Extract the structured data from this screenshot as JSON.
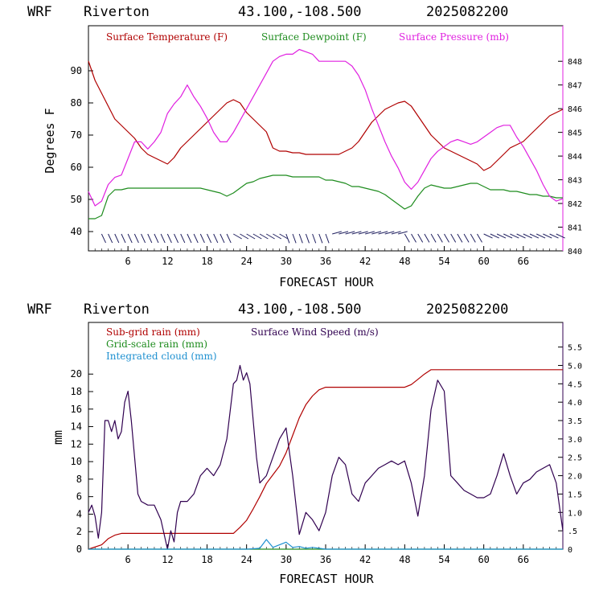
{
  "panels": [
    {
      "header": {
        "model": "WRF",
        "station": "Riverton",
        "coords": "43.100,-108.500",
        "run": "2025082200"
      },
      "xlabel": "FORECAST HOUR",
      "ylabel": "Degrees F",
      "legend": [
        {
          "label": "Surface Temperature (F)",
          "color": "#b00000"
        },
        {
          "label": "Surface Dewpoint (F)",
          "color": "#1e8c1e"
        },
        {
          "label": "Surface Pressure (mb)",
          "color": "#e020e0"
        }
      ]
    },
    {
      "header": {
        "model": "WRF",
        "station": "Riverton",
        "coords": "43.100,-108.500",
        "run": "2025082200"
      },
      "xlabel": "FORECAST HOUR",
      "ylabel": "mm",
      "legend": [
        {
          "label": "Sub-grid rain (mm)",
          "color": "#b00000"
        },
        {
          "label": "Surface Wind Speed (m/s)",
          "color": "#300050"
        },
        {
          "label": "Grid-scale rain (mm)",
          "color": "#1e8c1e"
        },
        {
          "label": "Integrated cloud (mm)",
          "color": "#1e90d0"
        }
      ]
    }
  ],
  "chart_data": [
    {
      "type": "line",
      "title": "WRF Riverton 43.100,-108.500 2025082200",
      "xlabel": "FORECAST HOUR",
      "ylabel": "Degrees F",
      "y2label": "",
      "xlim": [
        0,
        72
      ],
      "ylim": [
        34,
        104
      ],
      "y2lim": [
        840,
        849.5
      ],
      "x_ticks": [
        6,
        12,
        18,
        24,
        30,
        36,
        42,
        48,
        54,
        60,
        66
      ],
      "y_ticks": [
        40,
        50,
        60,
        70,
        80,
        90
      ],
      "y2_ticks": [
        840,
        841,
        842,
        843,
        844,
        845,
        846,
        847,
        848
      ],
      "series": [
        {
          "name": "Surface Temperature (F)",
          "color": "#b00000",
          "axis": "left",
          "x": [
            0,
            1,
            2,
            3,
            4,
            5,
            6,
            7,
            8,
            9,
            10,
            11,
            12,
            13,
            14,
            15,
            16,
            17,
            18,
            19,
            20,
            21,
            22,
            23,
            24,
            25,
            26,
            27,
            28,
            29,
            30,
            31,
            32,
            33,
            34,
            35,
            36,
            37,
            38,
            39,
            40,
            41,
            42,
            43,
            44,
            45,
            46,
            47,
            48,
            49,
            50,
            51,
            52,
            53,
            54,
            55,
            56,
            57,
            58,
            59,
            60,
            61,
            62,
            63,
            64,
            65,
            66,
            67,
            68,
            69,
            70,
            71,
            72
          ],
          "y": [
            93,
            87,
            83,
            79,
            75,
            73,
            71,
            69,
            66,
            64,
            63,
            62,
            61,
            63,
            66,
            68,
            70,
            72,
            74,
            76,
            78,
            80,
            81,
            80,
            77,
            75,
            73,
            71,
            66,
            65,
            65,
            64.5,
            64.5,
            64,
            64,
            64,
            64,
            64,
            64,
            65,
            66,
            68,
            71,
            74,
            76,
            78,
            79,
            80,
            80.5,
            79,
            76,
            73,
            70,
            68,
            66,
            65,
            64,
            63,
            62,
            61,
            59,
            60,
            62,
            64,
            66,
            67,
            68,
            70,
            72,
            74,
            76,
            77,
            78
          ]
        },
        {
          "name": "Surface Dewpoint (F)",
          "color": "#1e8c1e",
          "axis": "left",
          "x": [
            0,
            1,
            2,
            3,
            4,
            5,
            6,
            7,
            8,
            9,
            10,
            11,
            12,
            13,
            14,
            15,
            16,
            17,
            18,
            19,
            20,
            21,
            22,
            23,
            24,
            25,
            26,
            27,
            28,
            29,
            30,
            31,
            32,
            33,
            34,
            35,
            36,
            37,
            38,
            39,
            40,
            41,
            42,
            43,
            44,
            45,
            46,
            47,
            48,
            49,
            50,
            51,
            52,
            53,
            54,
            55,
            56,
            57,
            58,
            59,
            60,
            61,
            62,
            63,
            64,
            65,
            66,
            67,
            68,
            69,
            70,
            71,
            72
          ],
          "y": [
            44,
            44,
            45,
            51,
            53,
            53,
            53.5,
            53.5,
            53.5,
            53.5,
            53.5,
            53.5,
            53.5,
            53.5,
            53.5,
            53.5,
            53.5,
            53.5,
            53,
            52.5,
            52,
            51,
            52,
            53.5,
            55,
            55.5,
            56.5,
            57,
            57.5,
            57.5,
            57.5,
            57,
            57,
            57,
            57,
            57,
            56,
            56,
            55.5,
            55,
            54,
            54,
            53.5,
            53,
            52.5,
            51.5,
            50,
            48.5,
            47,
            48,
            51,
            53.5,
            54.5,
            54,
            53.5,
            53.5,
            54,
            54.5,
            55,
            55,
            54,
            53,
            53,
            53,
            52.5,
            52.5,
            52,
            51.5,
            51.5,
            51,
            51,
            50.5,
            50.5
          ]
        },
        {
          "name": "Surface Pressure (mb)",
          "color": "#e020e0",
          "axis": "right",
          "x": [
            0,
            1,
            2,
            3,
            4,
            5,
            6,
            7,
            8,
            9,
            10,
            11,
            12,
            13,
            14,
            15,
            16,
            17,
            18,
            19,
            20,
            21,
            22,
            23,
            24,
            25,
            26,
            27,
            28,
            29,
            30,
            31,
            32,
            33,
            34,
            35,
            36,
            37,
            38,
            39,
            40,
            41,
            42,
            43,
            44,
            45,
            46,
            47,
            48,
            49,
            50,
            51,
            52,
            53,
            54,
            55,
            56,
            57,
            58,
            59,
            60,
            61,
            62,
            63,
            64,
            65,
            66,
            67,
            68,
            69,
            70,
            71,
            72
          ],
          "y": [
            842.5,
            841.9,
            842.1,
            842.8,
            843.1,
            843.2,
            843.9,
            844.6,
            844.6,
            844.3,
            844.6,
            845,
            845.8,
            846.2,
            846.5,
            847,
            846.5,
            846.1,
            845.6,
            845,
            844.6,
            844.6,
            845,
            845.5,
            846,
            846.5,
            847,
            847.5,
            848,
            848.2,
            848.3,
            848.3,
            848.5,
            848.4,
            848.3,
            848,
            848,
            848,
            848,
            848,
            847.8,
            847.4,
            846.8,
            846,
            845.3,
            844.6,
            844,
            843.5,
            842.9,
            842.6,
            842.9,
            843.4,
            843.9,
            844.2,
            844.4,
            844.6,
            844.7,
            844.6,
            844.5,
            844.6,
            844.8,
            845,
            845.2,
            845.3,
            845.3,
            844.8,
            844.4,
            843.9,
            843.4,
            842.8,
            842.3,
            842.1,
            842.2
          ]
        }
      ],
      "wind_barbs": {
        "label": ""
      }
    },
    {
      "type": "line",
      "title": "WRF Riverton 43.100,-108.500 2025082200",
      "xlabel": "FORECAST HOUR",
      "ylabel": "mm",
      "xlim": [
        0,
        72
      ],
      "ylim": [
        0,
        25.9
      ],
      "y2lim": [
        0,
        6.17
      ],
      "x_ticks": [
        6,
        12,
        18,
        24,
        30,
        36,
        42,
        48,
        54,
        60,
        66
      ],
      "y_ticks": [
        0,
        2,
        4,
        6,
        8,
        10,
        12,
        14,
        16,
        18,
        20
      ],
      "y2_ticks": [
        "0",
        ".5",
        "1.0",
        "1.5",
        "2.0",
        "2.5",
        "3.0",
        "3.5",
        "4.0",
        "4.5",
        "5.0",
        "5.5"
      ],
      "series": [
        {
          "name": "Sub-grid rain (mm)",
          "color": "#b00000",
          "axis": "left",
          "x": [
            0,
            2,
            3,
            4,
            5,
            6,
            10,
            14,
            18,
            22,
            23,
            24,
            25,
            26,
            27,
            28,
            29,
            30,
            31,
            32,
            33,
            34,
            35,
            36,
            40,
            44,
            48,
            49,
            50,
            51,
            52,
            56,
            60,
            64,
            68,
            72
          ],
          "y": [
            0,
            0.5,
            1.2,
            1.6,
            1.8,
            1.8,
            1.8,
            1.8,
            1.8,
            1.8,
            2.5,
            3.3,
            4.6,
            6,
            7.5,
            8.5,
            9.5,
            11,
            13,
            15,
            16.5,
            17.5,
            18.2,
            18.5,
            18.5,
            18.5,
            18.5,
            18.8,
            19.4,
            20,
            20.5,
            20.5,
            20.5,
            20.5,
            20.5,
            20.5
          ]
        },
        {
          "name": "Surface Wind Speed (m/s)",
          "color": "#300050",
          "axis": "right",
          "x": [
            0,
            0.5,
            1,
            1.5,
            2,
            2.5,
            3,
            3.5,
            4,
            4.5,
            5,
            5.5,
            6,
            6.5,
            7,
            7.5,
            8,
            9,
            10,
            11,
            12,
            12.5,
            13,
            13.5,
            14,
            15,
            16,
            17,
            18,
            19,
            20,
            21,
            22,
            22.5,
            23,
            23.5,
            24,
            24.5,
            25,
            25.5,
            26,
            27,
            28,
            29,
            30,
            31,
            32,
            33,
            34,
            35,
            36,
            37,
            38,
            39,
            40,
            41,
            42,
            43,
            44,
            45,
            46,
            47,
            48,
            49,
            50,
            51,
            52,
            53,
            54,
            55,
            56,
            57,
            58,
            59,
            60,
            61,
            62,
            63,
            64,
            65,
            66,
            67,
            68,
            69,
            70,
            71,
            72
          ],
          "y": [
            1.0,
            1.2,
            0.9,
            0.3,
            1.0,
            3.5,
            3.5,
            3.2,
            3.5,
            3.0,
            3.2,
            4.0,
            4.3,
            3.5,
            2.5,
            1.5,
            1.3,
            1.2,
            1.2,
            0.8,
            0.0,
            0.5,
            0.2,
            1.0,
            1.3,
            1.3,
            1.5,
            2.0,
            2.2,
            2.0,
            2.3,
            3.0,
            4.5,
            4.6,
            5.0,
            4.6,
            4.8,
            4.5,
            3.5,
            2.5,
            1.8,
            2.0,
            2.5,
            3.0,
            3.3,
            2.0,
            0.4,
            1.0,
            0.8,
            0.5,
            1.0,
            2.0,
            2.5,
            2.3,
            1.5,
            1.3,
            1.8,
            2.0,
            2.2,
            2.3,
            2.4,
            2.3,
            2.4,
            1.8,
            0.9,
            2.0,
            3.8,
            4.6,
            4.3,
            2.0,
            1.8,
            1.6,
            1.5,
            1.4,
            1.4,
            1.5,
            2.0,
            2.6,
            2.0,
            1.5,
            1.8,
            1.9,
            2.1,
            2.2,
            2.3,
            1.8,
            0.5
          ]
        },
        {
          "name": "Grid-scale rain (mm)",
          "color": "#1e8c1e",
          "axis": "left",
          "x": [
            0,
            72
          ],
          "y": [
            0,
            0
          ]
        },
        {
          "name": "Integrated cloud (mm)",
          "color": "#1e90d0",
          "axis": "left",
          "x": [
            0,
            24,
            25,
            26,
            27,
            28,
            29,
            30,
            31,
            32,
            33,
            34,
            35,
            36,
            72
          ],
          "y": [
            0,
            0,
            0.05,
            0.1,
            1.1,
            0.2,
            0.5,
            0.8,
            0.2,
            0.3,
            0.1,
            0.2,
            0.1,
            0,
            0
          ]
        }
      ]
    }
  ]
}
